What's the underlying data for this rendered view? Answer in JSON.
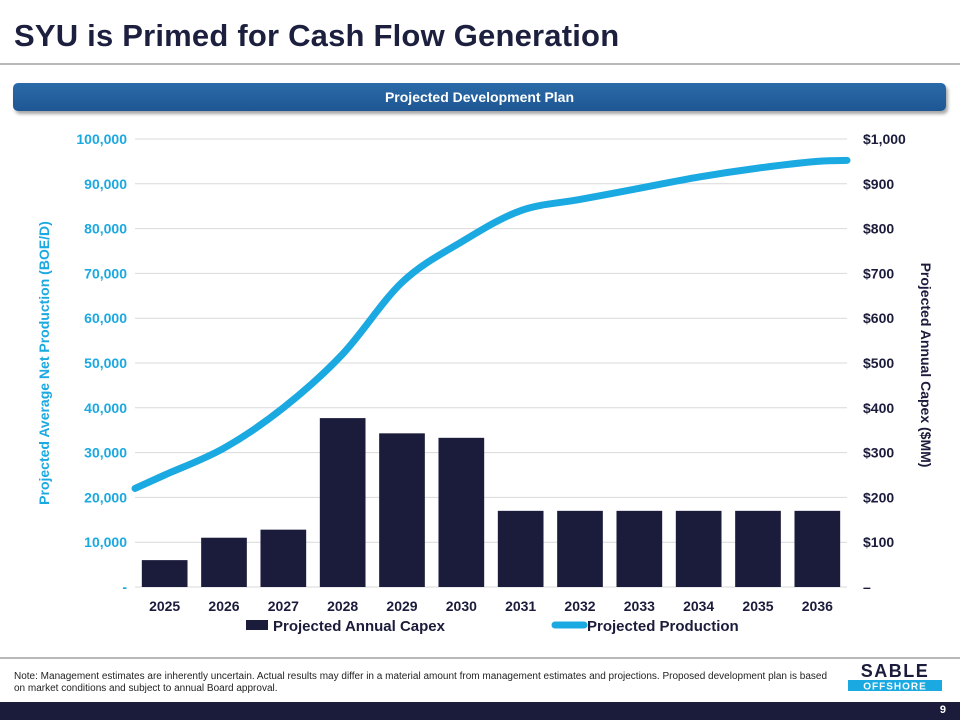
{
  "page": {
    "title": "SYU is Primed for Cash Flow Generation",
    "banner": "Projected Development Plan",
    "note": "Note: Management estimates are inherently uncertain. Actual results may differ in a material amount from management estimates and projections. Proposed development plan is based on market conditions and subject to annual Board approval.",
    "page_number": "9",
    "logo": {
      "line1": "SABLE",
      "line2": "OFFSHORE"
    }
  },
  "colors": {
    "bar": "#1b1c3b",
    "line": "#1ba9e1",
    "left_axis": "#1ba9e1",
    "right_axis": "#1b1c3b",
    "grid": "#d9d9d9"
  },
  "chart_data": {
    "type": "bar+line",
    "categories": [
      "2025",
      "2026",
      "2027",
      "2028",
      "2029",
      "2030",
      "2031",
      "2032",
      "2033",
      "2034",
      "2035",
      "2036"
    ],
    "series": [
      {
        "name": "Projected Annual Capex",
        "type": "bar",
        "axis": "right",
        "values": [
          60,
          110,
          128,
          377,
          343,
          333,
          170,
          170,
          170,
          170,
          170,
          170
        ]
      },
      {
        "name": "Projected Production",
        "type": "line",
        "axis": "left",
        "values": [
          25000,
          31000,
          40000,
          52000,
          68000,
          77000,
          84000,
          86500,
          89000,
          91500,
          93500,
          95000
        ]
      }
    ],
    "left_axis": {
      "label": "Projected Average Net Production (BOE/D)",
      "ylim": [
        0,
        100000
      ],
      "ticks": [
        "-",
        "10,000",
        "20,000",
        "30,000",
        "40,000",
        "50,000",
        "60,000",
        "70,000",
        "80,000",
        "90,000",
        "100,000"
      ]
    },
    "right_axis": {
      "label": "Projected Annual Capex ($MM)",
      "ylim": [
        0,
        1000
      ],
      "ticks": [
        "–",
        "$100",
        "$200",
        "$300",
        "$400",
        "$500",
        "$600",
        "$700",
        "$800",
        "$900",
        "$1,000"
      ]
    },
    "legend": [
      "Projected Annual Capex",
      "Projected Production"
    ],
    "grid": true,
    "legend_position": "bottom"
  }
}
